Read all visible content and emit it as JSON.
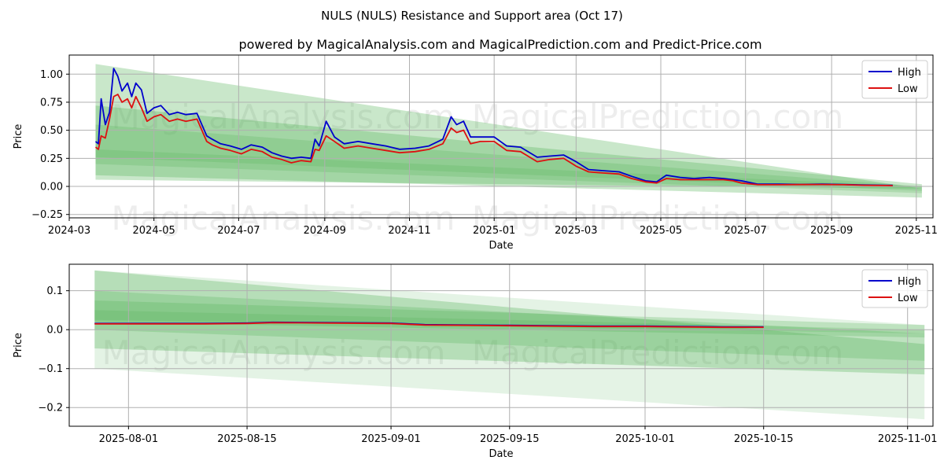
{
  "title": "NULS (NULS) Resistance and Support area (Oct 17)",
  "subtitle": "powered by MagicalAnalysis.com and MagicalPrediction.com and Predict-Price.com",
  "watermarks": [
    "MagicalAnalysis.com",
    "MagicalPrediction.com"
  ],
  "colors": {
    "high": "#0000cc",
    "low": "#dd1111",
    "band": "#4caf50",
    "grid": "#b0b0b0",
    "axis": "#000000"
  },
  "chart_data": [
    {
      "type": "line",
      "name": "full-history",
      "xlabel": "Date",
      "ylabel": "Price",
      "grid": true,
      "legend": "top-right",
      "legend_labels": [
        "High",
        "Low"
      ],
      "xlim": [
        "2024-03-01",
        "2025-11-13"
      ],
      "ylim": [
        -0.28,
        1.17
      ],
      "x_ticks": [
        "2024-03-01",
        "2024-05-01",
        "2024-07-01",
        "2024-09-01",
        "2024-11-01",
        "2025-01-01",
        "2025-03-01",
        "2025-05-01",
        "2025-07-01",
        "2025-09-01",
        "2025-11-01"
      ],
      "x_tick_labels": [
        "2024-03",
        "2024-05",
        "2024-07",
        "2024-09",
        "2024-11",
        "2025-01",
        "2025-03",
        "2025-05",
        "2025-07",
        "2025-09",
        "2025-11"
      ],
      "y_ticks": [
        -0.25,
        0,
        0.25,
        0.5,
        0.75,
        1.0
      ],
      "y_tick_labels": [
        "−0.25",
        "0.00",
        "0.25",
        "0.50",
        "0.75",
        "1.00"
      ],
      "bands": [
        {
          "name": "resistance-support-band-1",
          "x": [
            "2024-03-20",
            "2025-11-05"
          ],
          "upper": [
            1.09,
            -0.02
          ],
          "lower": [
            0.06,
            -0.02
          ],
          "opacity": 0.3
        },
        {
          "name": "resistance-support-band-2",
          "x": [
            "2024-03-20",
            "2025-11-05"
          ],
          "upper": [
            0.72,
            0.02
          ],
          "lower": [
            0.1,
            -0.1
          ],
          "opacity": 0.3
        },
        {
          "name": "resistance-support-band-3",
          "x": [
            "2024-03-20",
            "2025-11-05"
          ],
          "upper": [
            0.55,
            0.0
          ],
          "lower": [
            0.2,
            -0.06
          ],
          "opacity": 0.22
        },
        {
          "name": "resistance-support-band-4",
          "x": [
            "2024-03-20",
            "2025-11-05"
          ],
          "upper": [
            0.33,
            0.0
          ],
          "lower": [
            0.26,
            -0.04
          ],
          "opacity": 0.2
        }
      ],
      "series": [
        {
          "name": "High",
          "x": [
            "2024-03-20",
            "2024-03-22",
            "2024-03-24",
            "2024-03-27",
            "2024-03-30",
            "2024-04-02",
            "2024-04-05",
            "2024-04-08",
            "2024-04-12",
            "2024-04-15",
            "2024-04-18",
            "2024-04-22",
            "2024-04-26",
            "2024-05-01",
            "2024-05-06",
            "2024-05-12",
            "2024-05-18",
            "2024-05-24",
            "2024-06-01",
            "2024-06-08",
            "2024-06-12",
            "2024-06-18",
            "2024-06-25",
            "2024-07-03",
            "2024-07-10",
            "2024-07-18",
            "2024-07-25",
            "2024-08-01",
            "2024-08-08",
            "2024-08-15",
            "2024-08-22",
            "2024-08-25",
            "2024-08-28",
            "2024-09-02",
            "2024-09-08",
            "2024-09-15",
            "2024-09-25",
            "2024-10-05",
            "2024-10-15",
            "2024-10-25",
            "2024-11-05",
            "2024-11-15",
            "2024-11-25",
            "2024-12-01",
            "2024-12-05",
            "2024-12-10",
            "2024-12-15",
            "2024-12-22",
            "2025-01-01",
            "2025-01-10",
            "2025-01-20",
            "2025-02-01",
            "2025-02-10",
            "2025-02-20",
            "2025-03-01",
            "2025-03-10",
            "2025-03-20",
            "2025-04-01",
            "2025-04-10",
            "2025-04-20",
            "2025-04-28",
            "2025-05-05",
            "2025-05-15",
            "2025-05-25",
            "2025-06-05",
            "2025-06-15",
            "2025-06-22",
            "2025-06-28",
            "2025-07-10",
            "2025-07-25",
            "2025-08-10",
            "2025-08-25",
            "2025-09-10",
            "2025-09-25",
            "2025-10-10",
            "2025-10-15"
          ],
          "values": [
            0.4,
            0.38,
            0.78,
            0.55,
            0.66,
            1.05,
            0.98,
            0.85,
            0.92,
            0.8,
            0.92,
            0.86,
            0.65,
            0.7,
            0.72,
            0.64,
            0.66,
            0.64,
            0.65,
            0.45,
            0.42,
            0.38,
            0.36,
            0.33,
            0.37,
            0.35,
            0.3,
            0.27,
            0.25,
            0.26,
            0.25,
            0.42,
            0.36,
            0.58,
            0.44,
            0.38,
            0.4,
            0.38,
            0.36,
            0.33,
            0.34,
            0.36,
            0.42,
            0.62,
            0.55,
            0.58,
            0.44,
            0.44,
            0.44,
            0.36,
            0.35,
            0.26,
            0.27,
            0.28,
            0.22,
            0.15,
            0.14,
            0.13,
            0.09,
            0.05,
            0.04,
            0.1,
            0.08,
            0.07,
            0.08,
            0.07,
            0.06,
            0.05,
            0.02,
            0.02,
            0.018,
            0.02,
            0.017,
            0.012,
            0.01,
            0.009
          ]
        },
        {
          "name": "Low",
          "x": [
            "2024-03-20",
            "2024-03-22",
            "2024-03-24",
            "2024-03-27",
            "2024-03-30",
            "2024-04-02",
            "2024-04-05",
            "2024-04-08",
            "2024-04-12",
            "2024-04-15",
            "2024-04-18",
            "2024-04-22",
            "2024-04-26",
            "2024-05-01",
            "2024-05-06",
            "2024-05-12",
            "2024-05-18",
            "2024-05-24",
            "2024-06-01",
            "2024-06-08",
            "2024-06-12",
            "2024-06-18",
            "2024-06-25",
            "2024-07-03",
            "2024-07-10",
            "2024-07-18",
            "2024-07-25",
            "2024-08-01",
            "2024-08-08",
            "2024-08-15",
            "2024-08-22",
            "2024-08-25",
            "2024-08-28",
            "2024-09-02",
            "2024-09-08",
            "2024-09-15",
            "2024-09-25",
            "2024-10-05",
            "2024-10-15",
            "2024-10-25",
            "2024-11-05",
            "2024-11-15",
            "2024-11-25",
            "2024-12-01",
            "2024-12-05",
            "2024-12-10",
            "2024-12-15",
            "2024-12-22",
            "2025-01-01",
            "2025-01-10",
            "2025-01-20",
            "2025-02-01",
            "2025-02-10",
            "2025-02-20",
            "2025-03-01",
            "2025-03-10",
            "2025-03-20",
            "2025-04-01",
            "2025-04-10",
            "2025-04-20",
            "2025-04-28",
            "2025-05-05",
            "2025-05-15",
            "2025-05-25",
            "2025-06-05",
            "2025-06-15",
            "2025-06-22",
            "2025-06-28",
            "2025-07-10",
            "2025-07-25",
            "2025-08-10",
            "2025-08-25",
            "2025-09-10",
            "2025-09-25",
            "2025-10-10",
            "2025-10-15"
          ],
          "values": [
            0.35,
            0.33,
            0.45,
            0.43,
            0.6,
            0.8,
            0.82,
            0.75,
            0.78,
            0.7,
            0.8,
            0.7,
            0.58,
            0.62,
            0.64,
            0.58,
            0.6,
            0.58,
            0.6,
            0.4,
            0.37,
            0.34,
            0.32,
            0.29,
            0.33,
            0.31,
            0.26,
            0.24,
            0.21,
            0.23,
            0.22,
            0.33,
            0.32,
            0.45,
            0.4,
            0.34,
            0.36,
            0.34,
            0.32,
            0.3,
            0.31,
            0.33,
            0.38,
            0.52,
            0.48,
            0.5,
            0.38,
            0.4,
            0.4,
            0.32,
            0.31,
            0.22,
            0.24,
            0.25,
            0.18,
            0.13,
            0.12,
            0.11,
            0.07,
            0.04,
            0.03,
            0.07,
            0.06,
            0.06,
            0.06,
            0.06,
            0.05,
            0.03,
            0.015,
            0.015,
            0.016,
            0.017,
            0.015,
            0.01,
            0.008,
            0.007
          ]
        }
      ]
    },
    {
      "type": "line",
      "name": "recent-zoom",
      "xlabel": "Date",
      "ylabel": "Price",
      "grid": true,
      "legend": "top-right",
      "legend_labels": [
        "High",
        "Low"
      ],
      "xlim": [
        "2025-07-25",
        "2025-11-04"
      ],
      "ylim": [
        -0.248,
        0.168
      ],
      "x_ticks": [
        "2025-08-01",
        "2025-08-15",
        "2025-09-01",
        "2025-09-15",
        "2025-10-01",
        "2025-10-15",
        "2025-11-01"
      ],
      "x_tick_labels": [
        "2025-08-01",
        "2025-08-15",
        "2025-09-01",
        "2025-09-15",
        "2025-10-01",
        "2025-10-15",
        "2025-11-01"
      ],
      "y_ticks": [
        -0.2,
        -0.1,
        0.0,
        0.1
      ],
      "y_tick_labels": [
        "−0.2",
        "−0.1",
        "0.0",
        "0.1"
      ],
      "bands": [
        {
          "name": "resistance-support-band-1",
          "x": [
            "2025-07-28",
            "2025-11-03"
          ],
          "upper": [
            0.152,
            0.012
          ],
          "lower": [
            -0.1,
            -0.23
          ],
          "opacity": 0.15
        },
        {
          "name": "resistance-support-band-2",
          "x": [
            "2025-07-28",
            "2025-11-03"
          ],
          "upper": [
            0.152,
            -0.037
          ],
          "lower": [
            -0.048,
            -0.115
          ],
          "opacity": 0.3
        },
        {
          "name": "resistance-support-band-3",
          "x": [
            "2025-07-28",
            "2025-11-03"
          ],
          "upper": [
            0.1,
            -0.01
          ],
          "lower": [
            0.0,
            -0.08
          ],
          "opacity": 0.25
        },
        {
          "name": "resistance-support-band-4",
          "x": [
            "2025-07-28",
            "2025-11-03"
          ],
          "upper": [
            0.075,
            0.012
          ],
          "lower": [
            0.02,
            -0.02
          ],
          "opacity": 0.25
        },
        {
          "name": "resistance-support-band-5",
          "x": [
            "2025-07-28",
            "2025-11-03"
          ],
          "upper": [
            0.05,
            0.0
          ],
          "lower": [
            0.025,
            -0.01
          ],
          "opacity": 0.2
        }
      ],
      "series": [
        {
          "name": "High",
          "x": [
            "2025-07-28",
            "2025-08-03",
            "2025-08-10",
            "2025-08-15",
            "2025-08-18",
            "2025-08-25",
            "2025-09-01",
            "2025-09-05",
            "2025-09-10",
            "2025-09-15",
            "2025-09-20",
            "2025-09-25",
            "2025-10-01",
            "2025-10-05",
            "2025-10-10",
            "2025-10-15"
          ],
          "values": [
            0.016,
            0.016,
            0.016,
            0.017,
            0.019,
            0.018,
            0.017,
            0.013,
            0.012,
            0.011,
            0.01,
            0.009,
            0.009,
            0.008,
            0.007,
            0.007
          ]
        },
        {
          "name": "Low",
          "x": [
            "2025-07-28",
            "2025-08-03",
            "2025-08-10",
            "2025-08-15",
            "2025-08-18",
            "2025-08-25",
            "2025-09-01",
            "2025-09-05",
            "2025-09-10",
            "2025-09-15",
            "2025-09-20",
            "2025-09-25",
            "2025-10-01",
            "2025-10-05",
            "2025-10-10",
            "2025-10-15"
          ],
          "values": [
            0.015,
            0.015,
            0.015,
            0.016,
            0.018,
            0.017,
            0.016,
            0.012,
            0.011,
            0.01,
            0.009,
            0.008,
            0.008,
            0.007,
            0.006,
            0.006
          ]
        }
      ]
    }
  ]
}
